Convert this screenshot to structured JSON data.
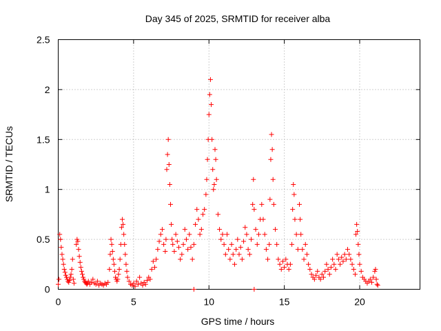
{
  "chart_data": {
    "type": "scatter",
    "title": "Day 345 of 2025, SRMTID for receiver alba",
    "xlabel": "GPS time / hours",
    "ylabel": "SRMTID / TECUs",
    "xlim": [
      0,
      24
    ],
    "ylim": [
      0,
      2.5
    ],
    "xticks": [
      0,
      5,
      10,
      15,
      20
    ],
    "xtick_labels": [
      "0",
      "5",
      "10",
      "15",
      "20"
    ],
    "yticks": [
      0,
      0.5,
      1,
      1.5,
      2,
      2.5
    ],
    "ytick_labels": [
      "0",
      "0.5",
      "1",
      "1.5",
      "2",
      "2.5"
    ],
    "grid": true,
    "marker": "plus",
    "color": "#ff0000",
    "series": [
      {
        "name": "SRMTID",
        "points": [
          [
            0.0,
            0.05
          ],
          [
            0.05,
            0.1
          ],
          [
            0.1,
            0.55
          ],
          [
            0.15,
            0.5
          ],
          [
            0.2,
            0.42
          ],
          [
            0.25,
            0.35
          ],
          [
            0.3,
            0.3
          ],
          [
            0.35,
            0.25
          ],
          [
            0.4,
            0.2
          ],
          [
            0.45,
            0.17
          ],
          [
            0.5,
            0.14
          ],
          [
            0.55,
            0.12
          ],
          [
            0.6,
            0.1
          ],
          [
            0.65,
            0.08
          ],
          [
            0.7,
            0.07
          ],
          [
            0.75,
            0.09
          ],
          [
            0.8,
            0.12
          ],
          [
            0.85,
            0.15
          ],
          [
            0.9,
            0.2
          ],
          [
            0.95,
            0.3
          ],
          [
            1.0,
            0.1
          ],
          [
            1.05,
            0.06
          ],
          [
            1.2,
            0.45
          ],
          [
            1.25,
            0.5
          ],
          [
            1.3,
            0.48
          ],
          [
            1.35,
            0.4
          ],
          [
            1.4,
            0.33
          ],
          [
            1.45,
            0.27
          ],
          [
            1.5,
            0.22
          ],
          [
            1.55,
            0.18
          ],
          [
            1.6,
            0.15
          ],
          [
            1.65,
            0.12
          ],
          [
            1.7,
            0.1
          ],
          [
            1.75,
            0.08
          ],
          [
            1.8,
            0.07
          ],
          [
            1.85,
            0.06
          ],
          [
            1.9,
            0.05
          ],
          [
            1.95,
            0.06
          ],
          [
            2.0,
            0.08
          ],
          [
            2.1,
            0.05
          ],
          [
            2.2,
            0.07
          ],
          [
            2.3,
            0.1
          ],
          [
            2.4,
            0.06
          ],
          [
            2.5,
            0.05
          ],
          [
            2.6,
            0.08
          ],
          [
            2.7,
            0.04
          ],
          [
            2.8,
            0.06
          ],
          [
            2.9,
            0.05
          ],
          [
            3.0,
            0.04
          ],
          [
            3.1,
            0.06
          ],
          [
            3.2,
            0.05
          ],
          [
            3.3,
            0.07
          ],
          [
            3.4,
            0.2
          ],
          [
            3.45,
            0.35
          ],
          [
            3.5,
            0.5
          ],
          [
            3.55,
            0.45
          ],
          [
            3.6,
            0.38
          ],
          [
            3.65,
            0.3
          ],
          [
            3.7,
            0.25
          ],
          [
            3.75,
            0.18
          ],
          [
            3.8,
            0.12
          ],
          [
            3.85,
            0.1
          ],
          [
            3.9,
            0.08
          ],
          [
            3.95,
            0.1
          ],
          [
            4.0,
            0.15
          ],
          [
            4.05,
            0.2
          ],
          [
            4.1,
            0.3
          ],
          [
            4.15,
            0.45
          ],
          [
            4.2,
            0.62
          ],
          [
            4.25,
            0.7
          ],
          [
            4.3,
            0.65
          ],
          [
            4.35,
            0.55
          ],
          [
            4.4,
            0.45
          ],
          [
            4.45,
            0.35
          ],
          [
            4.5,
            0.25
          ],
          [
            4.55,
            0.18
          ],
          [
            4.6,
            0.12
          ],
          [
            4.7,
            0.08
          ],
          [
            4.8,
            0.05
          ],
          [
            4.9,
            0.04
          ],
          [
            5.0,
            0.06
          ],
          [
            5.1,
            0.03
          ],
          [
            5.2,
            0.08
          ],
          [
            5.3,
            0.05
          ],
          [
            5.4,
            0.12
          ],
          [
            5.5,
            0.06
          ],
          [
            5.6,
            0.04
          ],
          [
            5.7,
            0.07
          ],
          [
            5.8,
            0.05
          ],
          [
            5.9,
            0.09
          ],
          [
            6.0,
            0.12
          ],
          [
            6.1,
            0.1
          ],
          [
            6.2,
            0.2
          ],
          [
            6.3,
            0.28
          ],
          [
            6.4,
            0.22
          ],
          [
            6.5,
            0.3
          ],
          [
            6.6,
            0.4
          ],
          [
            6.7,
            0.48
          ],
          [
            6.8,
            0.55
          ],
          [
            6.9,
            0.6
          ],
          [
            7.0,
            0.45
          ],
          [
            7.1,
            0.38
          ],
          [
            7.15,
            0.5
          ],
          [
            7.2,
            1.2
          ],
          [
            7.25,
            1.35
          ],
          [
            7.3,
            1.5
          ],
          [
            7.35,
            1.25
          ],
          [
            7.4,
            1.05
          ],
          [
            7.45,
            0.85
          ],
          [
            7.5,
            0.65
          ],
          [
            7.55,
            0.5
          ],
          [
            7.6,
            0.45
          ],
          [
            7.7,
            0.38
          ],
          [
            7.8,
            0.55
          ],
          [
            7.9,
            0.48
          ],
          [
            8.0,
            0.42
          ],
          [
            8.1,
            0.3
          ],
          [
            8.2,
            0.35
          ],
          [
            8.3,
            0.45
          ],
          [
            8.4,
            0.6
          ],
          [
            8.5,
            0.5
          ],
          [
            8.6,
            0.4
          ],
          [
            8.7,
            0.55
          ],
          [
            8.8,
            0.42
          ],
          [
            8.9,
            0.3
          ],
          [
            9.0,
            0.45
          ],
          [
            9.1,
            0.65
          ],
          [
            9.2,
            0.8
          ],
          [
            9.3,
            0.7
          ],
          [
            9.4,
            0.55
          ],
          [
            9.5,
            0.6
          ],
          [
            9.6,
            0.75
          ],
          [
            9.7,
            0.8
          ],
          [
            9.8,
            0.95
          ],
          [
            9.85,
            1.1
          ],
          [
            9.9,
            1.3
          ],
          [
            9.95,
            1.5
          ],
          [
            10.0,
            1.75
          ],
          [
            10.05,
            1.95
          ],
          [
            10.1,
            2.1
          ],
          [
            10.15,
            1.85
          ],
          [
            10.2,
            1.5
          ],
          [
            10.25,
            1.2
          ],
          [
            10.3,
            1.0
          ],
          [
            10.35,
            1.05
          ],
          [
            10.4,
            1.4
          ],
          [
            10.45,
            1.3
          ],
          [
            10.5,
            1.1
          ],
          [
            10.6,
            0.75
          ],
          [
            10.7,
            0.6
          ],
          [
            10.8,
            0.5
          ],
          [
            10.9,
            0.55
          ],
          [
            11.0,
            0.45
          ],
          [
            11.1,
            0.35
          ],
          [
            11.2,
            0.55
          ],
          [
            11.3,
            0.4
          ],
          [
            11.4,
            0.3
          ],
          [
            11.5,
            0.45
          ],
          [
            11.6,
            0.35
          ],
          [
            11.7,
            0.25
          ],
          [
            11.8,
            0.4
          ],
          [
            11.9,
            0.5
          ],
          [
            12.0,
            0.35
          ],
          [
            12.1,
            0.42
          ],
          [
            12.2,
            0.3
          ],
          [
            12.3,
            0.48
          ],
          [
            12.4,
            0.62
          ],
          [
            12.5,
            0.55
          ],
          [
            12.6,
            0.4
          ],
          [
            12.7,
            0.35
          ],
          [
            12.8,
            0.5
          ],
          [
            12.9,
            0.85
          ],
          [
            12.95,
            1.1
          ],
          [
            13.0,
            0.8
          ],
          [
            13.1,
            0.6
          ],
          [
            13.2,
            0.45
          ],
          [
            13.3,
            0.55
          ],
          [
            13.4,
            0.7
          ],
          [
            13.5,
            0.85
          ],
          [
            13.6,
            0.7
          ],
          [
            13.7,
            0.55
          ],
          [
            13.8,
            0.4
          ],
          [
            13.9,
            0.3
          ],
          [
            14.0,
            0.45
          ],
          [
            14.05,
            0.9
          ],
          [
            14.1,
            1.3
          ],
          [
            14.15,
            1.55
          ],
          [
            14.2,
            1.4
          ],
          [
            14.25,
            1.1
          ],
          [
            14.3,
            0.85
          ],
          [
            14.4,
            0.6
          ],
          [
            14.5,
            0.45
          ],
          [
            14.6,
            0.3
          ],
          [
            14.7,
            0.25
          ],
          [
            14.8,
            0.2
          ],
          [
            14.9,
            0.28
          ],
          [
            15.0,
            0.22
          ],
          [
            15.1,
            0.3
          ],
          [
            15.2,
            0.25
          ],
          [
            15.3,
            0.2
          ],
          [
            15.4,
            0.25
          ],
          [
            15.5,
            0.45
          ],
          [
            15.55,
            0.8
          ],
          [
            15.6,
            1.05
          ],
          [
            15.65,
            0.95
          ],
          [
            15.7,
            0.7
          ],
          [
            15.8,
            0.55
          ],
          [
            15.9,
            0.4
          ],
          [
            16.0,
            0.85
          ],
          [
            16.05,
            0.7
          ],
          [
            16.1,
            0.55
          ],
          [
            16.2,
            0.4
          ],
          [
            16.3,
            0.3
          ],
          [
            16.4,
            0.45
          ],
          [
            16.5,
            0.35
          ],
          [
            16.6,
            0.25
          ],
          [
            16.7,
            0.2
          ],
          [
            16.8,
            0.15
          ],
          [
            16.9,
            0.12
          ],
          [
            17.0,
            0.1
          ],
          [
            17.1,
            0.14
          ],
          [
            17.2,
            0.18
          ],
          [
            17.3,
            0.12
          ],
          [
            17.4,
            0.1
          ],
          [
            17.5,
            0.15
          ],
          [
            17.6,
            0.12
          ],
          [
            17.7,
            0.18
          ],
          [
            17.8,
            0.25
          ],
          [
            17.9,
            0.2
          ],
          [
            18.0,
            0.15
          ],
          [
            18.1,
            0.22
          ],
          [
            18.2,
            0.3
          ],
          [
            18.3,
            0.25
          ],
          [
            18.4,
            0.2
          ],
          [
            18.5,
            0.35
          ],
          [
            18.6,
            0.3
          ],
          [
            18.7,
            0.25
          ],
          [
            18.8,
            0.32
          ],
          [
            18.9,
            0.28
          ],
          [
            19.0,
            0.35
          ],
          [
            19.1,
            0.3
          ],
          [
            19.2,
            0.4
          ],
          [
            19.3,
            0.35
          ],
          [
            19.4,
            0.3
          ],
          [
            19.5,
            0.25
          ],
          [
            19.6,
            0.2
          ],
          [
            19.7,
            0.15
          ],
          [
            19.75,
            0.55
          ],
          [
            19.8,
            0.65
          ],
          [
            19.85,
            0.58
          ],
          [
            19.9,
            0.45
          ],
          [
            19.95,
            0.35
          ],
          [
            20.0,
            0.25
          ],
          [
            20.1,
            0.18
          ],
          [
            20.2,
            0.12
          ],
          [
            20.3,
            0.1
          ],
          [
            20.4,
            0.08
          ],
          [
            20.5,
            0.06
          ],
          [
            20.6,
            0.08
          ],
          [
            20.7,
            0.1
          ],
          [
            20.8,
            0.07
          ],
          [
            20.9,
            0.12
          ],
          [
            21.0,
            0.18
          ],
          [
            21.05,
            0.2
          ],
          [
            21.1,
            0.1
          ],
          [
            21.15,
            0.05
          ],
          [
            21.2,
            0.04
          ],
          [
            9.0,
            0.0
          ],
          [
            13.0,
            0.0
          ]
        ]
      }
    ]
  }
}
